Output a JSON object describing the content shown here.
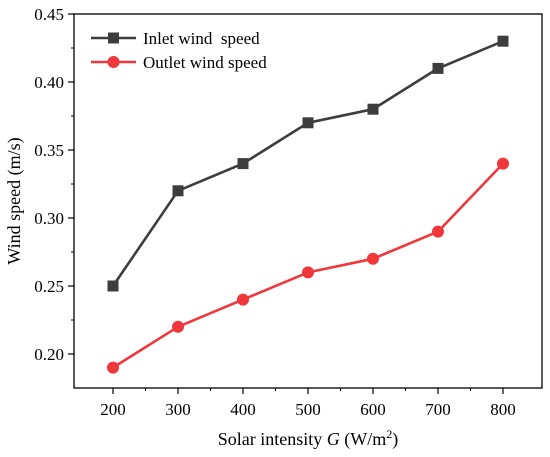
{
  "chart_data": {
    "type": "line",
    "xlabel_prefix": "Solar intensity ",
    "xlabel_var": "G",
    "xlabel_unit_pre": " (W/m",
    "xlabel_unit_sup": "2",
    "xlabel_unit_post": ")",
    "ylabel": "Wind speed (m/s)",
    "x": [
      200,
      300,
      400,
      500,
      600,
      700,
      800
    ],
    "xlim": [
      140,
      860
    ],
    "ylim": [
      0.175,
      0.45
    ],
    "xticks": [
      "200",
      "300",
      "400",
      "500",
      "600",
      "700",
      "800"
    ],
    "yticks": [
      "0.20",
      "0.25",
      "0.30",
      "0.35",
      "0.40",
      "0.45"
    ],
    "grid": false,
    "legend_position": "top-left",
    "series": [
      {
        "name": "Inlet wind  speed",
        "values": [
          0.25,
          0.32,
          0.34,
          0.37,
          0.38,
          0.41,
          0.43
        ],
        "color": "#3d3d3d",
        "marker": "square"
      },
      {
        "name": "Outlet wind speed",
        "values": [
          0.19,
          0.22,
          0.24,
          0.26,
          0.27,
          0.29,
          0.34
        ],
        "color": "#f0373c",
        "marker": "circle"
      }
    ]
  }
}
